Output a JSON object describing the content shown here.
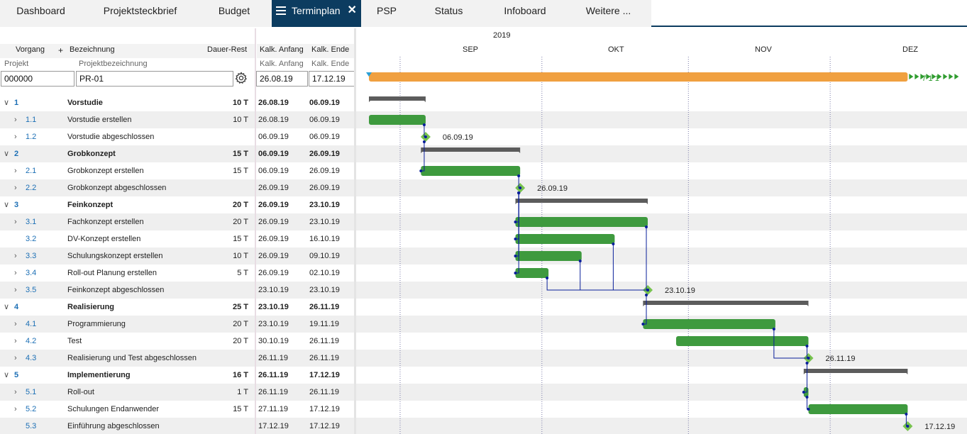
{
  "tabs": [
    {
      "label": "Dashboard",
      "active": false
    },
    {
      "label": "Projektsteckbrief",
      "active": false
    },
    {
      "label": "Budget",
      "active": false
    },
    {
      "label": "Terminplan",
      "active": true
    },
    {
      "label": "PSP",
      "active": false
    },
    {
      "label": "Status",
      "active": false
    },
    {
      "label": "Infoboard",
      "active": false
    },
    {
      "label": "Weitere ...",
      "active": false
    }
  ],
  "colors": {
    "tab_active_bg": "#0c3c60",
    "summary_bar": "#5c5c5c",
    "task_bar": "#3e9a3e",
    "milestone": "#77c24f",
    "project_bar": "#f0a040",
    "link_line": "#0a1f9a",
    "today_marker": "#2a9fd6"
  },
  "columns": {
    "vorgang": "Vorgang",
    "add": "+",
    "bezeichnung": "Bezeichnung",
    "dauer_rest": "Dauer-Rest",
    "kalk_anfang": "Kalk. Anfang",
    "kalk_ende": "Kalk. Ende",
    "projekt": "Projekt",
    "projektbezeichnung": "Projektbezeichnung",
    "kalk_anfang2": "Kalk. Anfang",
    "kalk_ende2": "Kalk. Ende"
  },
  "project": {
    "id": "000000",
    "name": "PR-01",
    "start": "26.08.19",
    "end": "17.12.19",
    "settings_icon": "gear-icon"
  },
  "timeline": {
    "year": "2019",
    "months": [
      "SEP",
      "OKT",
      "NOV",
      "DEZ"
    ],
    "overflow_label": "7 1 1"
  },
  "rows": [
    {
      "id": "1",
      "name": "Vorstudie",
      "dauer": "10 T",
      "start": "26.08.19",
      "end": "06.09.19",
      "level": 0,
      "expander": "chevron-down",
      "summary": true
    },
    {
      "id": "1.1",
      "name": "Vorstudie erstellen",
      "dauer": "10 T",
      "start": "26.08.19",
      "end": "06.09.19",
      "level": 1,
      "expander": "chevron-right",
      "summary": false
    },
    {
      "id": "1.2",
      "name": "Vorstudie abgeschlossen",
      "dauer": "",
      "start": "06.09.19",
      "end": "06.09.19",
      "level": 1,
      "expander": "chevron-right",
      "summary": false
    },
    {
      "id": "2",
      "name": "Grobkonzept",
      "dauer": "15 T",
      "start": "06.09.19",
      "end": "26.09.19",
      "level": 0,
      "expander": "chevron-down",
      "summary": true
    },
    {
      "id": "2.1",
      "name": "Grobkonzept erstellen",
      "dauer": "15 T",
      "start": "06.09.19",
      "end": "26.09.19",
      "level": 1,
      "expander": "chevron-right",
      "summary": false
    },
    {
      "id": "2.2",
      "name": "Grobkonzept abgeschlossen",
      "dauer": "",
      "start": "26.09.19",
      "end": "26.09.19",
      "level": 1,
      "expander": "chevron-right",
      "summary": false
    },
    {
      "id": "3",
      "name": "Feinkonzept",
      "dauer": "20 T",
      "start": "26.09.19",
      "end": "23.10.19",
      "level": 0,
      "expander": "chevron-down",
      "summary": true
    },
    {
      "id": "3.1",
      "name": "Fachkonzept erstellen",
      "dauer": "20 T",
      "start": "26.09.19",
      "end": "23.10.19",
      "level": 1,
      "expander": "chevron-right",
      "summary": false
    },
    {
      "id": "3.2",
      "name": "DV-Konzept erstellen",
      "dauer": "15 T",
      "start": "26.09.19",
      "end": "16.10.19",
      "level": 1,
      "expander": "",
      "summary": false
    },
    {
      "id": "3.3",
      "name": "Schulungskonzept erstellen",
      "dauer": "10 T",
      "start": "26.09.19",
      "end": "09.10.19",
      "level": 1,
      "expander": "chevron-right",
      "summary": false
    },
    {
      "id": "3.4",
      "name": "Roll-out Planung erstellen",
      "dauer": "5 T",
      "start": "26.09.19",
      "end": "02.10.19",
      "level": 1,
      "expander": "chevron-right",
      "summary": false
    },
    {
      "id": "3.5",
      "name": "Feinkonzept abgeschlossen",
      "dauer": "",
      "start": "23.10.19",
      "end": "23.10.19",
      "level": 1,
      "expander": "chevron-right",
      "summary": false
    },
    {
      "id": "4",
      "name": "Realisierung",
      "dauer": "25 T",
      "start": "23.10.19",
      "end": "26.11.19",
      "level": 0,
      "expander": "chevron-down",
      "summary": true
    },
    {
      "id": "4.1",
      "name": "Programmierung",
      "dauer": "20 T",
      "start": "23.10.19",
      "end": "19.11.19",
      "level": 1,
      "expander": "chevron-right",
      "summary": false
    },
    {
      "id": "4.2",
      "name": "Test",
      "dauer": "20 T",
      "start": "30.10.19",
      "end": "26.11.19",
      "level": 1,
      "expander": "chevron-right",
      "summary": false
    },
    {
      "id": "4.3",
      "name": "Realisierung und Test abgeschlossen",
      "dauer": "",
      "start": "26.11.19",
      "end": "26.11.19",
      "level": 1,
      "expander": "chevron-right",
      "summary": false
    },
    {
      "id": "5",
      "name": "Implementierung",
      "dauer": "16 T",
      "start": "26.11.19",
      "end": "17.12.19",
      "level": 0,
      "expander": "chevron-down",
      "summary": true
    },
    {
      "id": "5.1",
      "name": "Roll-out",
      "dauer": "1 T",
      "start": "26.11.19",
      "end": "26.11.19",
      "level": 1,
      "expander": "chevron-right",
      "summary": false
    },
    {
      "id": "5.2",
      "name": "Schulungen Endanwender",
      "dauer": "15 T",
      "start": "27.11.19",
      "end": "17.12.19",
      "level": 1,
      "expander": "chevron-right",
      "summary": false
    },
    {
      "id": "5.3",
      "name": "Einführung abgeschlossen",
      "dauer": "",
      "start": "17.12.19",
      "end": "17.12.19",
      "level": 1,
      "expander": "",
      "summary": false
    }
  ],
  "milestone_labels": [
    {
      "row": 2,
      "text": "06.09.19"
    },
    {
      "row": 5,
      "text": "26.09.19"
    },
    {
      "row": 11,
      "text": "23.10.19"
    },
    {
      "row": 15,
      "text": "26.11.19"
    },
    {
      "row": 19,
      "text": "17.12.19"
    }
  ]
}
